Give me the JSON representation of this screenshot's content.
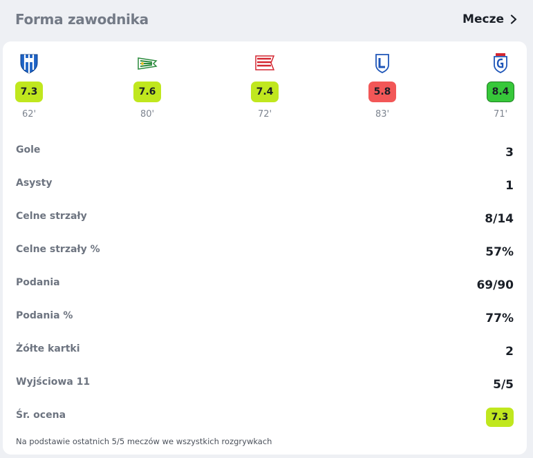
{
  "header": {
    "title": "Forma zawodnika",
    "matches_label": "Mecze",
    "chevron_icon": "chevron-right-icon"
  },
  "games": [
    {
      "team_icon": "wisla-plock-crest-icon",
      "rating": "7.3",
      "rating_color": "#c0e71e",
      "minutes": "62'"
    },
    {
      "team_icon": "lechia-gdansk-crest-icon",
      "rating": "7.6",
      "rating_color": "#c0e71e",
      "minutes": "80'"
    },
    {
      "team_icon": "cracovia-crest-icon",
      "rating": "7.4",
      "rating_color": "#c0e71e",
      "minutes": "72'"
    },
    {
      "team_icon": "lech-poznan-crest-icon",
      "rating": "5.8",
      "rating_color": "#f25757",
      "minutes": "83'"
    },
    {
      "team_icon": "gornik-zabrze-crest-icon",
      "rating": "8.4",
      "rating_color": "#37c83a",
      "minutes": "71'"
    }
  ],
  "stats": [
    {
      "label": "Gole",
      "value": "3"
    },
    {
      "label": "Asysty",
      "value": "1"
    },
    {
      "label": "Celne strzały",
      "value": "8/14"
    },
    {
      "label": "Celne strzały %",
      "value": "57%"
    },
    {
      "label": "Podania",
      "value": "69/90"
    },
    {
      "label": "Podania %",
      "value": "77%"
    },
    {
      "label": "Żółte kartki",
      "value": "2"
    },
    {
      "label": "Wyjściowa 11",
      "value": "5/5"
    }
  ],
  "average": {
    "label": "Śr. ocena",
    "value": "7.3",
    "color": "#c0e71e"
  },
  "footnote": "Na podstawie ostatnich 5/5 meczów we wszystkich rozgrywkach"
}
